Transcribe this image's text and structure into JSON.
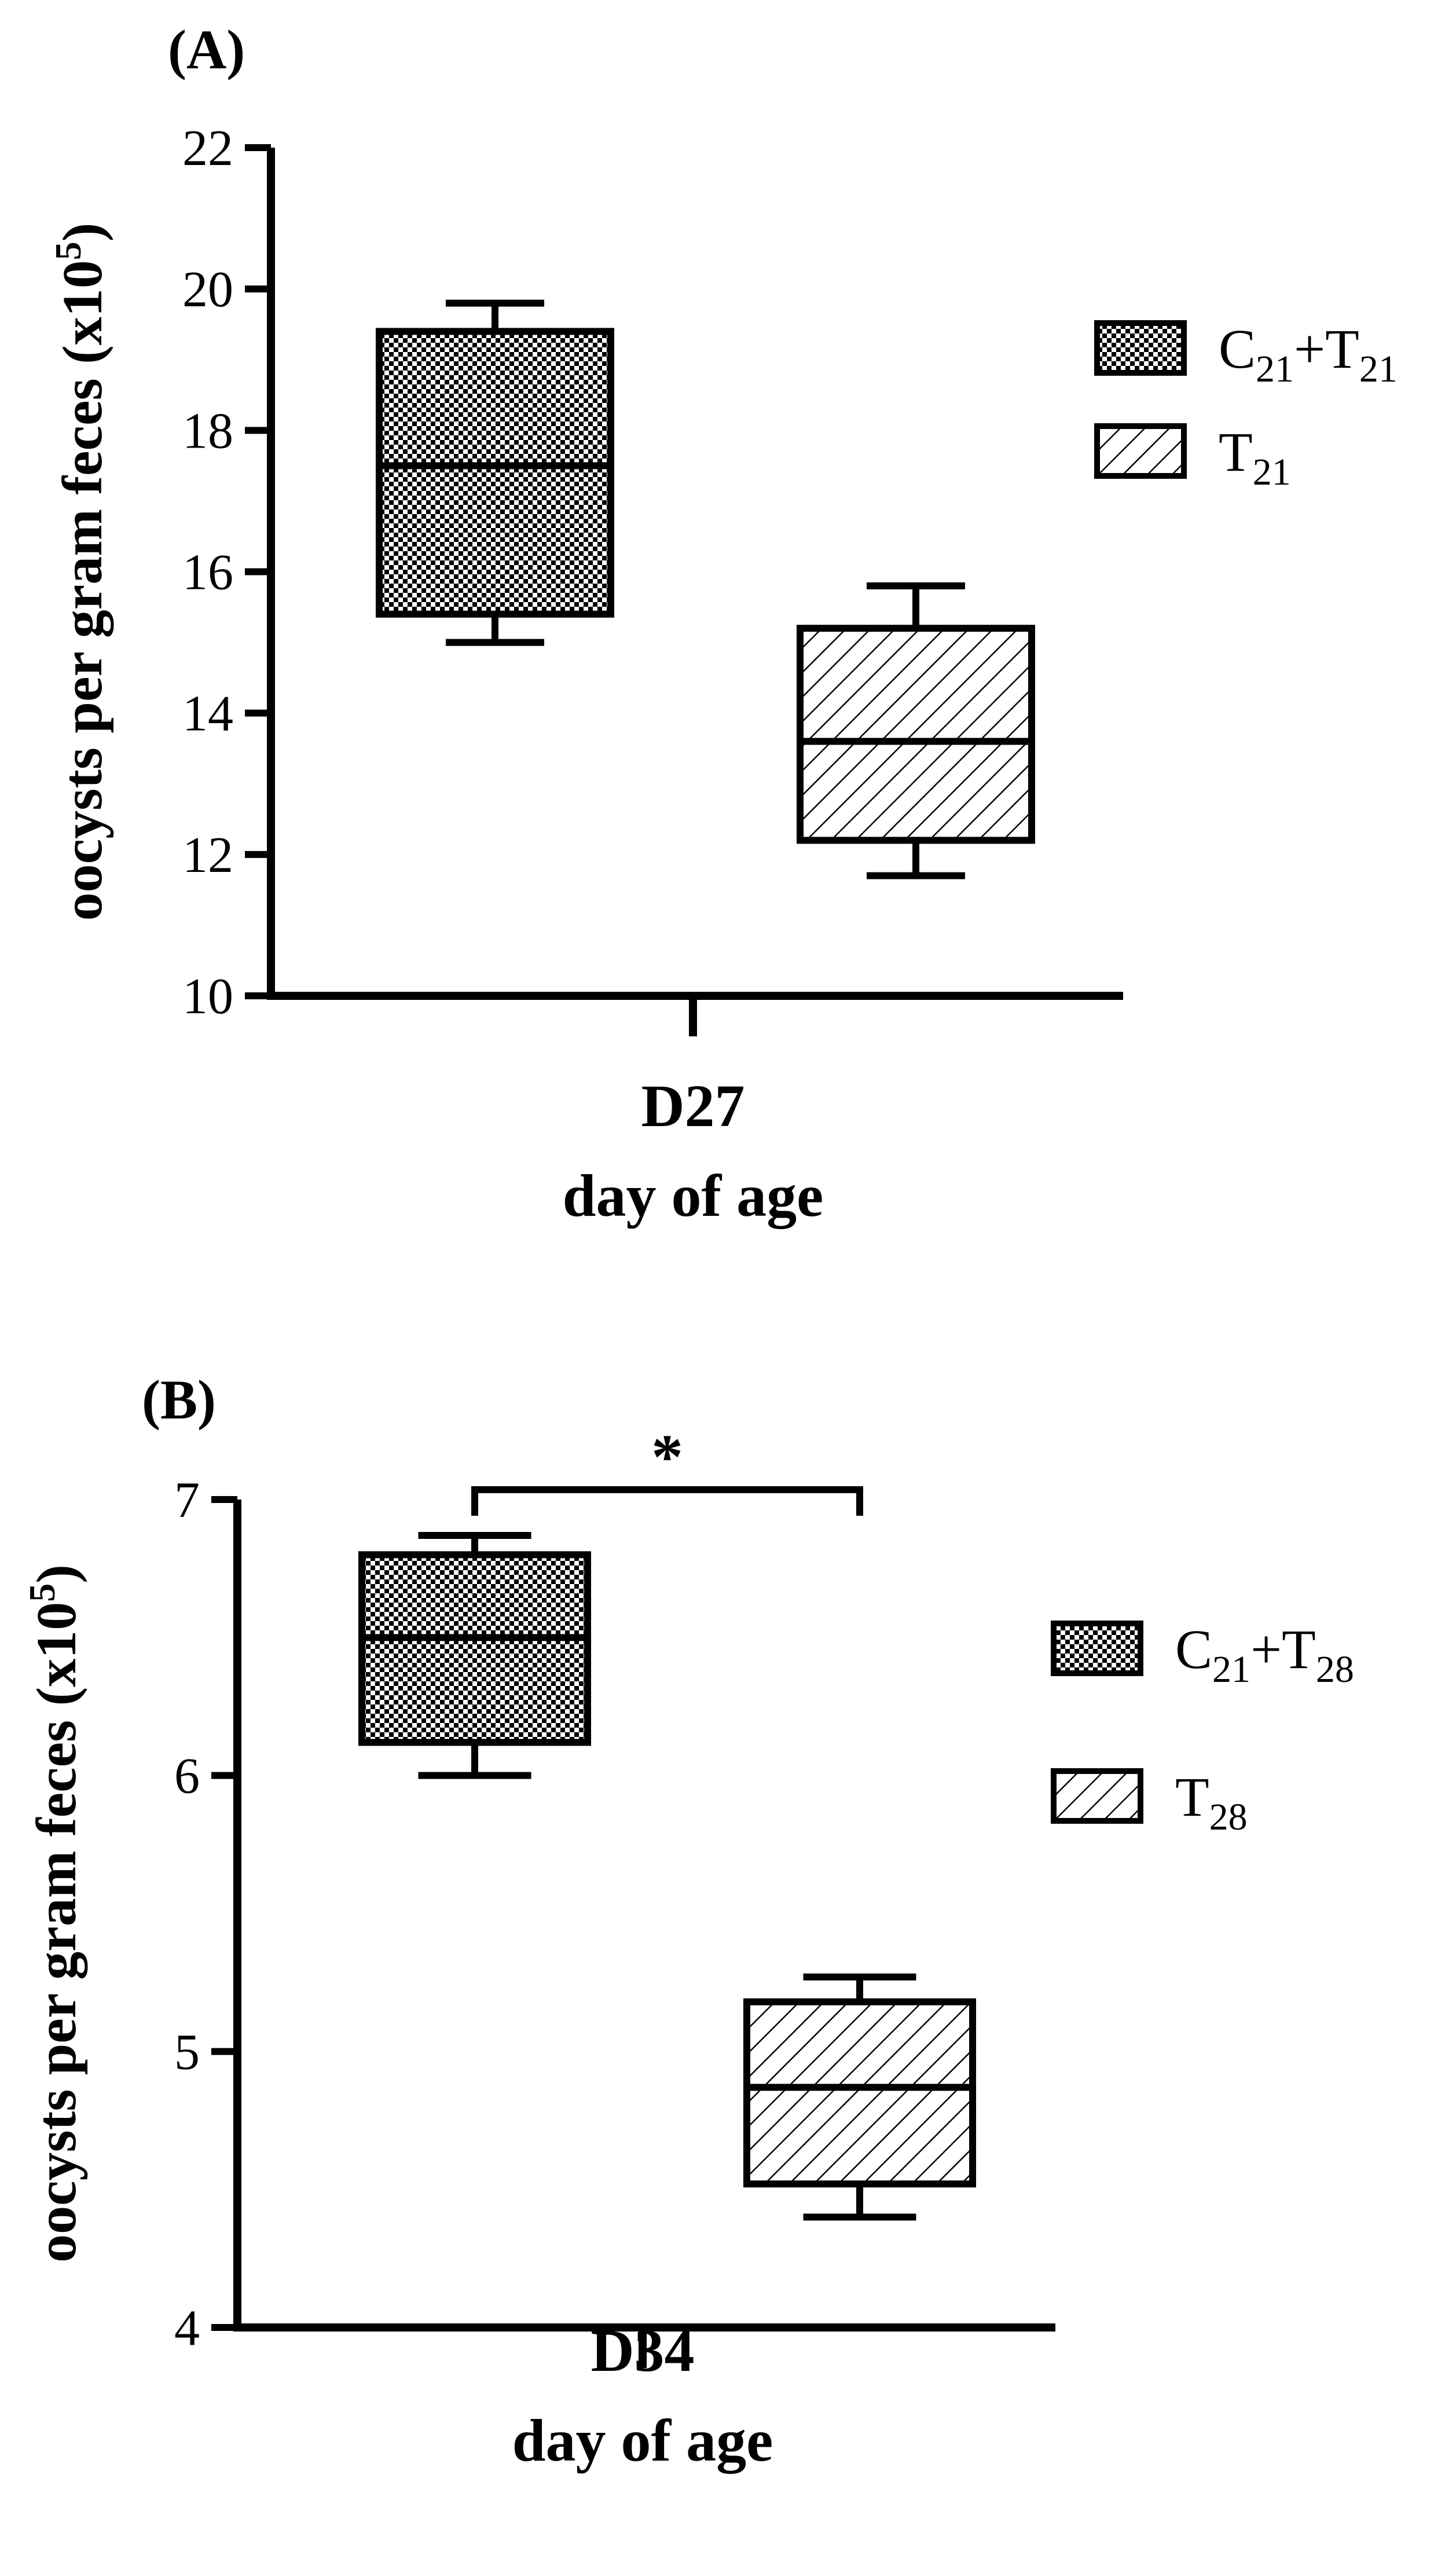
{
  "chart_data": [
    {
      "type": "box",
      "panel_label": "(A)",
      "ylabel": "oocysts per gram feces (x10",
      "ylabel_exp": "5",
      "ylabel_close": ")",
      "ylim": [
        10,
        22
      ],
      "yticks": [
        "10",
        "12",
        "14",
        "16",
        "18",
        "20",
        "22"
      ],
      "ytick_values": [
        10,
        12,
        14,
        16,
        18,
        20,
        22
      ],
      "category": "D27",
      "xlabel": "day of age",
      "significance": null,
      "series": [
        {
          "name": "C21+T21",
          "legend_base": "C",
          "legend_sub1": "21",
          "legend_mid": "+T",
          "legend_sub2": "21",
          "pattern": "checker",
          "min": 15.0,
          "q1": 15.4,
          "median": 17.5,
          "q3": 19.4,
          "max": 19.8
        },
        {
          "name": "T21",
          "legend_base": "T",
          "legend_sub1": "21",
          "legend_mid": "",
          "legend_sub2": "",
          "pattern": "hatch",
          "min": 11.7,
          "q1": 12.2,
          "median": 13.6,
          "q3": 15.2,
          "max": 15.8
        }
      ]
    },
    {
      "type": "box",
      "panel_label": "(B)",
      "ylabel": "oocysts per gram feces (x10",
      "ylabel_exp": "5",
      "ylabel_close": ")",
      "ylim": [
        4,
        7
      ],
      "yticks": [
        "4",
        "5",
        "6",
        "7"
      ],
      "ytick_values": [
        4,
        5,
        6,
        7
      ],
      "category": "D34",
      "xlabel": "day of age",
      "significance": "*",
      "series": [
        {
          "name": "C21+T28",
          "legend_base": "C",
          "legend_sub1": "21",
          "legend_mid": "+T",
          "legend_sub2": "28",
          "pattern": "checker",
          "min": 6.0,
          "q1": 6.12,
          "median": 6.5,
          "q3": 6.8,
          "max": 6.87
        },
        {
          "name": "T28",
          "legend_base": "T",
          "legend_sub1": "28",
          "legend_mid": "",
          "legend_sub2": "",
          "pattern": "hatch",
          "min": 4.4,
          "q1": 4.52,
          "median": 4.87,
          "q3": 5.18,
          "max": 5.27
        }
      ]
    }
  ]
}
